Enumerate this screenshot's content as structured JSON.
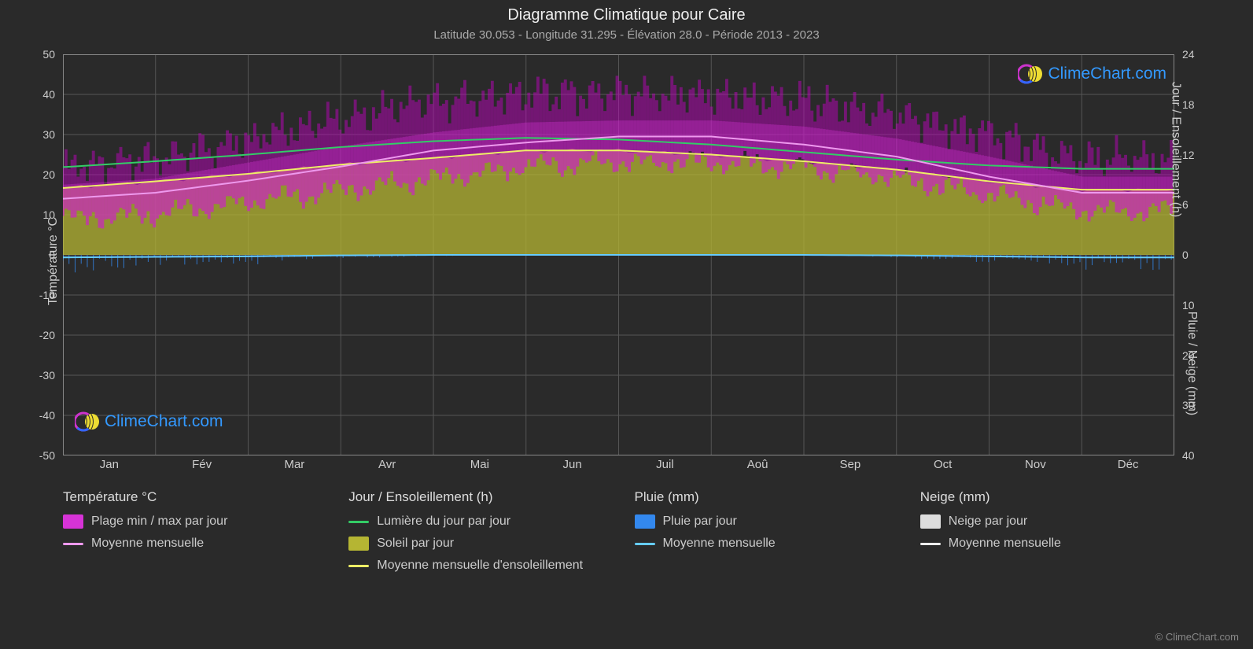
{
  "title": "Diagramme Climatique pour Caire",
  "subtitle": "Latitude 30.053 - Longitude 31.295 - Élévation 28.0 - Période 2013 - 2023",
  "watermark_text": "ClimeChart.com",
  "copyright": "© ClimeChart.com",
  "background_color": "#2a2a2a",
  "grid_color": "#555555",
  "grid_border_color": "#888888",
  "text_color": "#cccccc",
  "title_fontsize": 20,
  "subtitle_fontsize": 15,
  "axis_left": {
    "label": "Température °C",
    "min": -50,
    "max": 50,
    "ticks": [
      50,
      40,
      30,
      20,
      10,
      0,
      -10,
      -20,
      -30,
      -40,
      -50
    ],
    "fontsize": 14
  },
  "axis_right_top": {
    "label": "Jour / Ensoleillement (h)",
    "min": 0,
    "max": 24,
    "ticks": [
      24,
      18,
      12,
      6,
      0
    ],
    "fontsize": 14
  },
  "axis_right_bot": {
    "label": "Pluie / Neige (mm)",
    "min": 0,
    "max": 40,
    "ticks": [
      10,
      20,
      30,
      40
    ],
    "fontsize": 14
  },
  "months": [
    "Jan",
    "Fév",
    "Mar",
    "Avr",
    "Mai",
    "Jun",
    "Juil",
    "Aoû",
    "Sep",
    "Oct",
    "Nov",
    "Déc"
  ],
  "series": {
    "temp_band": {
      "label": "Plage min / max par jour",
      "type": "area_band",
      "color": "#d633d6",
      "color_bright": "#cc00cc",
      "opacity": 0.65,
      "upper_by_month": [
        22,
        24,
        29,
        34,
        38,
        40,
        40,
        40,
        38,
        35,
        30,
        24
      ],
      "lower_by_month": [
        9,
        10,
        13,
        16,
        19,
        22,
        23,
        23,
        22,
        19,
        15,
        11
      ]
    },
    "temp_avg": {
      "label": "Moyenne mensuelle",
      "type": "line",
      "color": "#ee99ee",
      "width": 2,
      "values_by_month": [
        14,
        15.5,
        18.5,
        22,
        26,
        28,
        29.5,
        29.5,
        27.5,
        24.5,
        19.5,
        15.5
      ]
    },
    "daylight": {
      "label": "Lumière du jour par jour",
      "type": "line",
      "color": "#33cc66",
      "width": 2,
      "values_by_month": [
        10.5,
        11.2,
        12.0,
        12.9,
        13.6,
        14.0,
        13.8,
        13.2,
        12.3,
        11.4,
        10.7,
        10.3
      ]
    },
    "sun_area": {
      "label": "Soleil par jour",
      "type": "area",
      "color": "#b5b533",
      "opacity": 0.75,
      "values_by_month": [
        8.0,
        8.8,
        9.7,
        10.8,
        11.6,
        12.5,
        12.5,
        12.0,
        11.2,
        10.2,
        8.8,
        7.8
      ]
    },
    "sun_avg": {
      "label": "Moyenne mensuelle d'ensoleillement",
      "type": "line",
      "color": "#eeee66",
      "width": 2,
      "values_by_month": [
        8.0,
        8.8,
        9.7,
        10.8,
        11.6,
        12.5,
        12.5,
        12.0,
        11.2,
        10.2,
        8.8,
        7.8
      ]
    },
    "rain_daily": {
      "label": "Pluie par jour",
      "type": "bar_down",
      "color": "#3388ee",
      "values_by_month": [
        1.5,
        1.0,
        0.8,
        0.3,
        0.1,
        0,
        0,
        0,
        0,
        0.2,
        0.8,
        1.2
      ]
    },
    "rain_avg": {
      "label": "Moyenne mensuelle",
      "type": "line",
      "color": "#66ccff",
      "width": 2,
      "values_by_month": [
        0.5,
        0.4,
        0.3,
        0.1,
        0,
        0,
        0,
        0,
        0,
        0.1,
        0.3,
        0.5
      ]
    },
    "snow_daily": {
      "label": "Neige par jour",
      "type": "bar_down",
      "color": "#dddddd",
      "values_by_month": [
        0,
        0,
        0,
        0,
        0,
        0,
        0,
        0,
        0,
        0,
        0,
        0
      ]
    },
    "snow_avg": {
      "label": "Moyenne mensuelle",
      "type": "line",
      "color": "#eeeeee",
      "width": 2,
      "values_by_month": [
        0,
        0,
        0,
        0,
        0,
        0,
        0,
        0,
        0,
        0,
        0,
        0
      ]
    }
  },
  "legend": {
    "columns": [
      {
        "title": "Température °C",
        "items": [
          {
            "type": "swatch",
            "color_key": "series.temp_band.color",
            "label_key": "series.temp_band.label"
          },
          {
            "type": "line",
            "color_key": "series.temp_avg.color",
            "label_key": "series.temp_avg.label"
          }
        ]
      },
      {
        "title": "Jour / Ensoleillement (h)",
        "items": [
          {
            "type": "line",
            "color_key": "series.daylight.color",
            "label_key": "series.daylight.label"
          },
          {
            "type": "swatch",
            "color_key": "series.sun_area.color",
            "label_key": "series.sun_area.label"
          },
          {
            "type": "line",
            "color_key": "series.sun_avg.color",
            "label_key": "series.sun_avg.label"
          }
        ]
      },
      {
        "title": "Pluie (mm)",
        "items": [
          {
            "type": "swatch",
            "color_key": "series.rain_daily.color",
            "label_key": "series.rain_daily.label"
          },
          {
            "type": "line",
            "color_key": "series.rain_avg.color",
            "label_key": "series.rain_avg.label"
          }
        ]
      },
      {
        "title": "Neige (mm)",
        "items": [
          {
            "type": "swatch",
            "color_key": "series.snow_daily.color",
            "label_key": "series.snow_daily.label"
          },
          {
            "type": "line",
            "color_key": "series.snow_avg.color",
            "label_key": "series.snow_avg.label"
          }
        ]
      }
    ]
  }
}
